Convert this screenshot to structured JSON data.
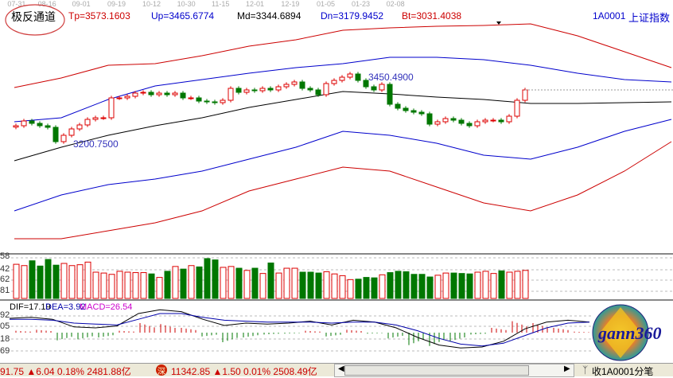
{
  "indicator": {
    "name": "极反通道",
    "tp": "Tp=3573.1603",
    "up": "Up=3465.6774",
    "md": "Md=3344.6894",
    "dn": "Dn=3179.9452",
    "bt": "Bt=3031.4038"
  },
  "symbol": {
    "code": "1A0001",
    "name": "上证指数"
  },
  "date_axis": [
    "07-31",
    "08-16",
    "09-01",
    "09-19",
    "10-12",
    "10-30",
    "11-15",
    "12-01",
    "12-19",
    "01-05",
    "01-23",
    "02-08"
  ],
  "colors": {
    "tp": "#cc0000",
    "up": "#0000cc",
    "md": "#000000",
    "up_candle": "#dd0000",
    "down_candle": "#007700",
    "dif": "#000000",
    "dea": "#0000aa"
  },
  "chart_data": {
    "type": "candlestick",
    "annotations": {
      "low": "3200.7500",
      "high": "3450.4900"
    },
    "closes": [
      3281,
      3299,
      3290,
      3281,
      3275,
      3221,
      3245,
      3269,
      3284,
      3305,
      3311,
      3311,
      3386,
      3386,
      3392,
      3404,
      3407,
      3398,
      3404,
      3398,
      3404,
      3386,
      3386,
      3374,
      3371,
      3368,
      3377,
      3422,
      3407,
      3416,
      3413,
      3422,
      3416,
      3428,
      3437,
      3446,
      3422,
      3416,
      3398,
      3440,
      3452,
      3464,
      3476,
      3452,
      3428,
      3416,
      3437,
      3362,
      3347,
      3338,
      3332,
      3326,
      3287,
      3296,
      3308,
      3302,
      3290,
      3281,
      3296,
      3302,
      3302,
      3296,
      3317,
      3377,
      3416
    ],
    "bands": {
      "tp": [
        3425,
        3461,
        3509,
        3515,
        3545,
        3581,
        3605,
        3641,
        3650,
        3656,
        3659,
        3665,
        3620,
        3560,
        3500
      ],
      "up": [
        3296,
        3311,
        3380,
        3431,
        3455,
        3479,
        3500,
        3515,
        3539,
        3539,
        3530,
        3509,
        3479,
        3455,
        3446
      ],
      "md": [
        3149,
        3200,
        3245,
        3281,
        3311,
        3350,
        3380,
        3410,
        3401,
        3389,
        3380,
        3365,
        3365,
        3368,
        3371
      ],
      "dn": [
        2960,
        3020,
        3059,
        3080,
        3110,
        3155,
        3200,
        3260,
        3245,
        3215,
        3170,
        3155,
        3200,
        3260,
        3305
      ],
      "bt": [
        2855,
        2855,
        2885,
        2915,
        2960,
        3035,
        3080,
        3125,
        3110,
        3050,
        2990,
        2960,
        3020,
        3110,
        3221
      ]
    },
    "volume_pct": [
      78,
      75,
      86,
      74,
      89,
      76,
      80,
      75,
      77,
      83,
      60,
      58,
      55,
      62,
      60,
      59,
      59,
      56,
      48,
      62,
      73,
      67,
      75,
      72,
      91,
      88,
      71,
      73,
      69,
      64,
      69,
      57,
      81,
      58,
      69,
      69,
      60,
      60,
      58,
      61,
      56,
      52,
      43,
      44,
      48,
      47,
      54,
      59,
      62,
      61,
      55,
      55,
      49,
      53,
      58,
      58,
      57,
      56,
      60,
      62,
      57,
      63,
      60,
      62,
      64
    ],
    "volume_axis": [
      "58",
      "42",
      "62",
      "81"
    ],
    "macd": {
      "dif_label": "DIF=17.19",
      "dea_label": "DEA=3.92",
      "macd_label": "MACD=26.54",
      "axis": [
        "92",
        "05",
        "18",
        "69"
      ],
      "dif": [
        30,
        32,
        28,
        12,
        10,
        14,
        40,
        48,
        44,
        28,
        15,
        20,
        18,
        20,
        24,
        16,
        26,
        22,
        10,
        -10,
        -26,
        -32,
        -30,
        -18,
        8,
        22,
        26,
        22
      ],
      "dea": [
        28,
        28,
        26,
        20,
        18,
        16,
        28,
        40,
        40,
        32,
        26,
        24,
        22,
        22,
        22,
        20,
        22,
        22,
        16,
        4,
        -12,
        -24,
        -28,
        -22,
        -6,
        10,
        20,
        22
      ],
      "hist": [
        4,
        6,
        -16,
        -14,
        -10,
        4,
        20,
        18,
        10,
        -8,
        -20,
        -10,
        -4,
        -2,
        4,
        -8,
        6,
        -2,
        -12,
        -26,
        -28,
        -18,
        -4,
        10,
        24,
        20,
        10,
        2
      ]
    }
  },
  "status": {
    "sh": "91.75 ▲6.04 0.18% 2481.88亿",
    "sz": "11342.85 ▲1.50 0.01% 2508.49亿",
    "sz_badge": "深",
    "right": "收1A0001分笔"
  },
  "logo": "gann360"
}
